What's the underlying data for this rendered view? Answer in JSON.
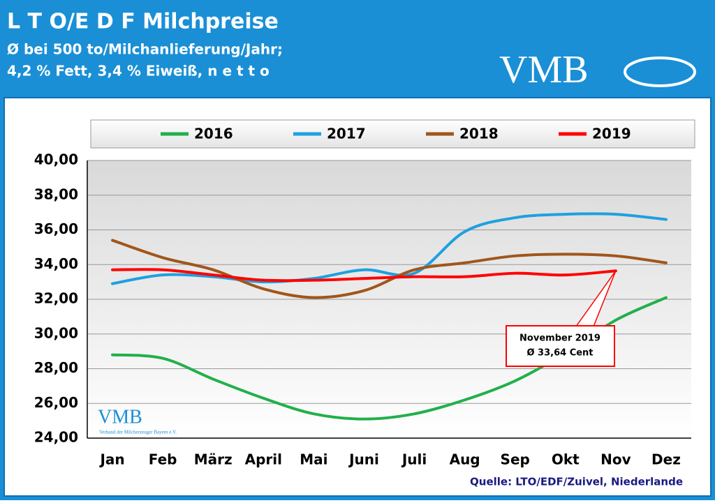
{
  "chart_data": {
    "type": "line",
    "title": "L T O/E D F Milchpreise",
    "subtitle": [
      "Ø bei 500 to/Milchanlieferung/Jahr;",
      "4,2 % Fett, 3,4 % Eiweiß, n e t t o"
    ],
    "logo": "VMB",
    "watermark": {
      "logo": "VMB",
      "text": "Verband der Milcherzeuger Bayern e.V."
    },
    "source": "Quelle: LTO/EDF/Zuivel, Niederlande",
    "categories": [
      "Jan",
      "Feb",
      "März",
      "April",
      "Mai",
      "Juni",
      "Juli",
      "Aug",
      "Sep",
      "Okt",
      "Nov",
      "Dez"
    ],
    "series": [
      {
        "name": "2016",
        "color": "#21b04b",
        "values": [
          28.8,
          28.6,
          27.4,
          26.3,
          25.4,
          25.1,
          25.4,
          26.2,
          27.3,
          28.9,
          30.8,
          32.1
        ]
      },
      {
        "name": "2017",
        "color": "#1ea0e0",
        "values": [
          32.9,
          33.4,
          33.3,
          33.0,
          33.2,
          33.7,
          33.5,
          35.9,
          36.7,
          36.9,
          36.9,
          36.6
        ]
      },
      {
        "name": "2018",
        "color": "#a0561b",
        "values": [
          35.4,
          34.4,
          33.7,
          32.6,
          32.1,
          32.5,
          33.7,
          34.1,
          34.5,
          34.6,
          34.5,
          34.1
        ]
      },
      {
        "name": "2019",
        "color": "#ff0000",
        "values": [
          33.7,
          33.7,
          33.4,
          33.1,
          33.1,
          33.2,
          33.3,
          33.3,
          33.5,
          33.4,
          33.64,
          null
        ]
      }
    ],
    "ylim": [
      24,
      40
    ],
    "yticks": [
      {
        "value": 24,
        "label": "24,00"
      },
      {
        "value": 26,
        "label": "26,00"
      },
      {
        "value": 28,
        "label": "28,00"
      },
      {
        "value": 30,
        "label": "30,00"
      },
      {
        "value": 32,
        "label": "32,00"
      },
      {
        "value": 34,
        "label": "34,00"
      },
      {
        "value": 36,
        "label": "36,00"
      },
      {
        "value": 38,
        "label": "38,00"
      },
      {
        "value": 40,
        "label": "40,00"
      }
    ],
    "grid": true,
    "legend": "top",
    "annotation": {
      "lines": [
        "November 2019",
        "Ø 33,64  Cent"
      ],
      "series": 3,
      "index": 10
    }
  }
}
